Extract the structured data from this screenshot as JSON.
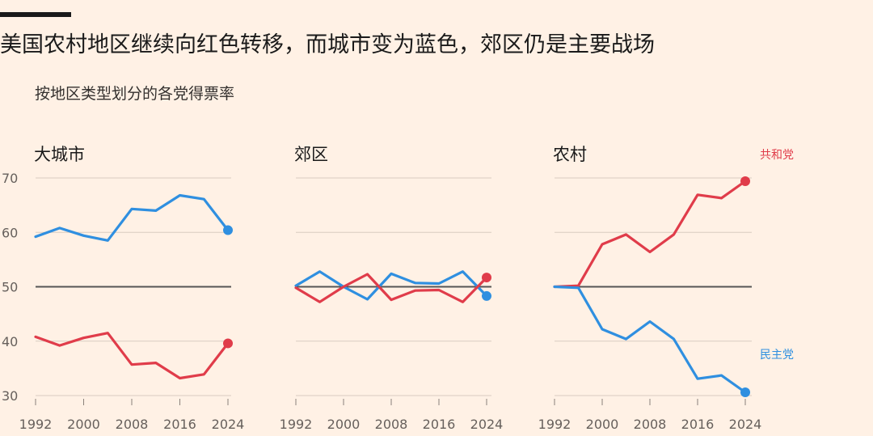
{
  "title": "美国农村地区继续向红色转移，而城市变为蓝色，郊区仍是主要战场",
  "subtitle": "按地区类型划分的各党得票率",
  "colors": {
    "republican": "#E03C4A",
    "democrat": "#2F8FE0",
    "background": "#FFF1E5"
  },
  "chart_data": {
    "type": "line",
    "x": [
      1992,
      1996,
      2000,
      2004,
      2008,
      2012,
      2016,
      2020,
      2024
    ],
    "xticks": [
      1992,
      2000,
      2008,
      2016,
      2024
    ],
    "xtick_labels": [
      "1992",
      "2000",
      "2008",
      "2016",
      "2024"
    ],
    "yticks": [
      30,
      40,
      50,
      60,
      70
    ],
    "ytick_labels": [
      "30",
      "40",
      "50",
      "60",
      "70"
    ],
    "ylim": [
      30,
      70
    ],
    "xlim": [
      1992,
      2024
    ],
    "reference_line": 50,
    "grid": true,
    "legend": [
      {
        "name": "共和党",
        "panel": 2,
        "color": "#E03C4A"
      },
      {
        "name": "民主党",
        "panel": 2,
        "color": "#2F8FE0"
      }
    ],
    "panels": [
      {
        "title": "大城市",
        "series": [
          {
            "party": "democrat",
            "values": [
              59.2,
              60.8,
              59.4,
              58.5,
              64.3,
              64.0,
              66.8,
              66.1,
              60.4
            ]
          },
          {
            "party": "republican",
            "values": [
              40.8,
              39.2,
              40.6,
              41.5,
              35.7,
              36.0,
              33.2,
              33.9,
              39.6
            ]
          }
        ]
      },
      {
        "title": "郊区",
        "series": [
          {
            "party": "democrat",
            "values": [
              50.2,
              52.8,
              50.0,
              47.7,
              52.4,
              50.7,
              50.6,
              52.8,
              48.3
            ]
          },
          {
            "party": "republican",
            "values": [
              49.8,
              47.2,
              50.0,
              52.3,
              47.6,
              49.3,
              49.4,
              47.2,
              51.7
            ]
          }
        ]
      },
      {
        "title": "农村",
        "series": [
          {
            "party": "republican",
            "values": [
              50.0,
              50.2,
              57.8,
              59.6,
              56.4,
              59.6,
              66.9,
              66.3,
              69.4
            ]
          },
          {
            "party": "democrat",
            "values": [
              50.0,
              49.8,
              42.2,
              40.4,
              43.6,
              40.4,
              33.1,
              33.7,
              30.6
            ]
          }
        ]
      }
    ]
  }
}
